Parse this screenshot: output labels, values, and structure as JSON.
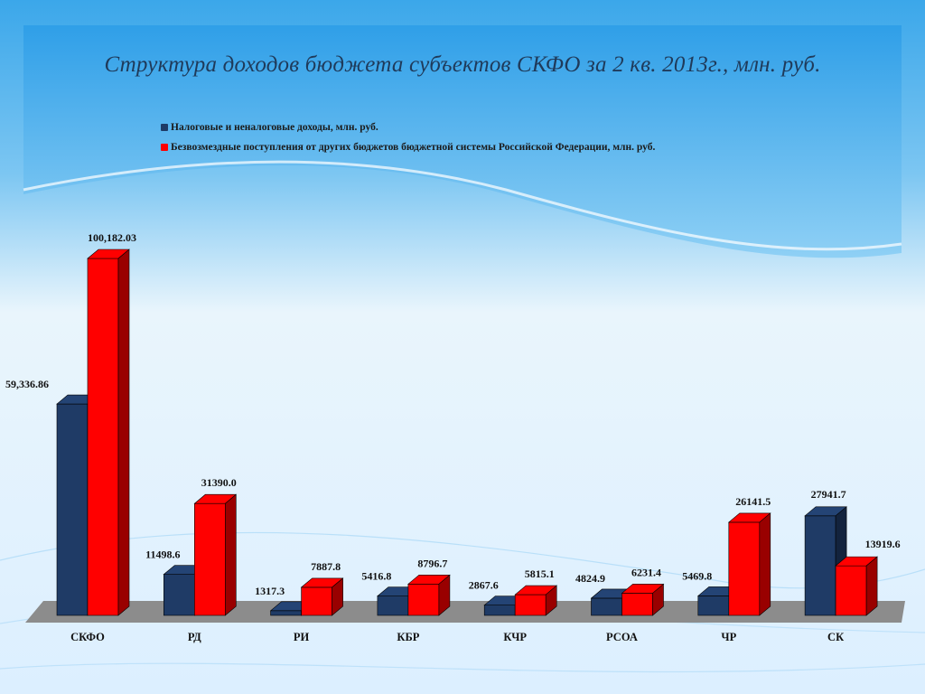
{
  "chart_data": {
    "type": "bar",
    "title": "Структура доходов бюджета субъектов СКФО за 2 кв. 2013г., млн. руб.",
    "categories": [
      "СКФО",
      "РД",
      "РИ",
      "КБР",
      "КЧР",
      "РСОА",
      "ЧР",
      "СК"
    ],
    "series": [
      {
        "name": "Налоговые и неналоговые доходы, млн. руб.",
        "color": "#1f3b66",
        "values": [
          59336.86,
          11498.6,
          1317.3,
          5416.8,
          2867.6,
          4824.9,
          5469.8,
          27941.7
        ],
        "labels": [
          "59,336.86",
          "11498.6",
          "1317.3",
          "5416.8",
          "2867.6",
          "4824.9",
          "5469.8",
          "27941.7"
        ]
      },
      {
        "name": "Безвозмездные поступления от других бюджетов бюджетной системы Российской Федерации, млн. руб.",
        "color": "#ff0000",
        "values": [
          100182.03,
          31390.0,
          7887.8,
          8796.7,
          5815.1,
          6231.4,
          26141.5,
          13919.6
        ],
        "labels": [
          "100,182.03",
          "31390.0",
          "7887.8",
          "8796.7",
          "5815.1",
          "6231.4",
          "26141.5",
          "13919.6"
        ]
      }
    ],
    "xlabel": "",
    "ylabel": "",
    "ylim": [
      0,
      100182.03
    ],
    "grid": false,
    "legend_position": "top-left"
  }
}
